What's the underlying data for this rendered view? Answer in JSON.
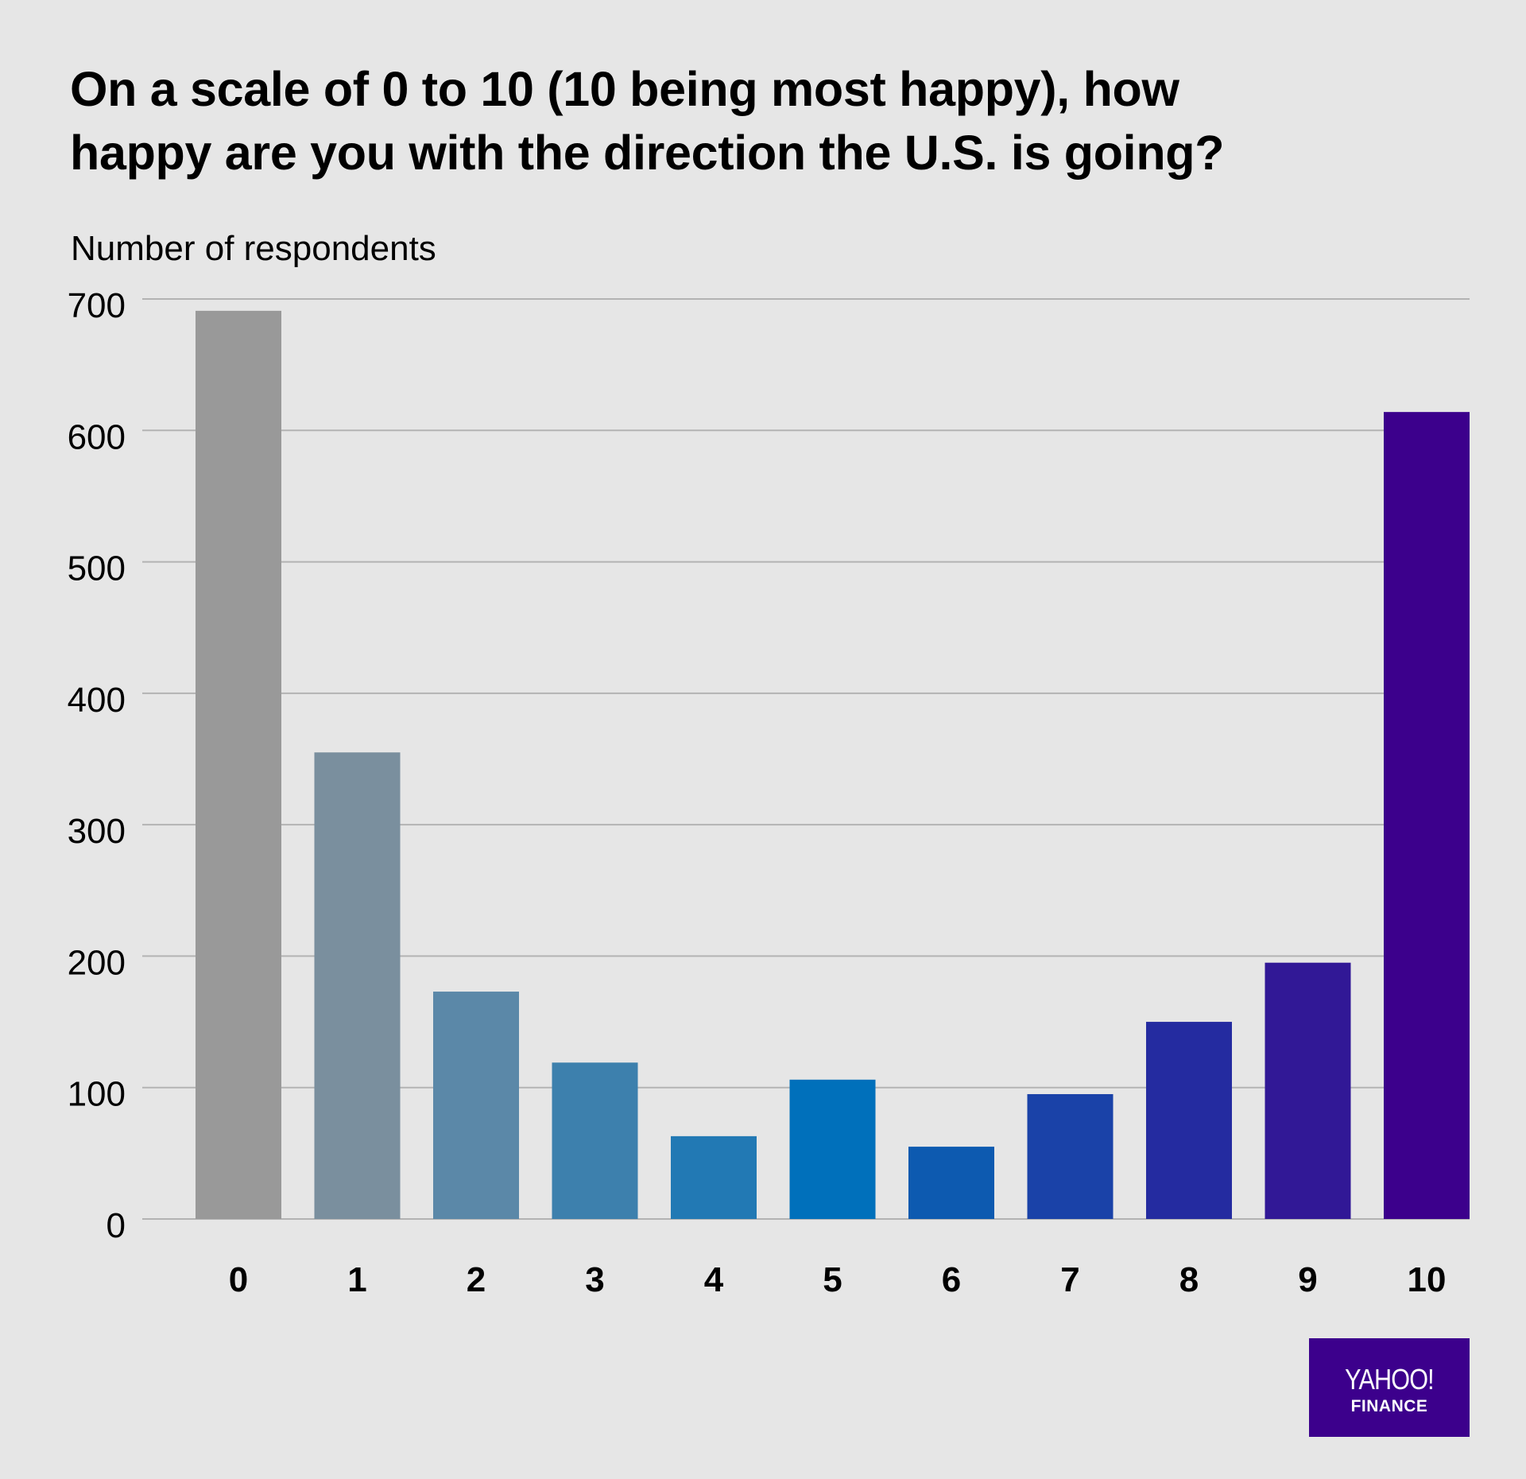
{
  "chart_data": {
    "type": "bar",
    "title": "On a scale of 0 to 10 (10 being most happy), how happy are you with the direction the U.S. is going?",
    "title_lines": [
      "On a scale of 0 to 10 (10 being most happy), how",
      "happy are you with the direction the U.S. is going?"
    ],
    "xlabel": "",
    "ylabel": "Number of respondents",
    "categories": [
      "0",
      "1",
      "2",
      "3",
      "4",
      "5",
      "6",
      "7",
      "8",
      "9",
      "10"
    ],
    "values": [
      691,
      355,
      173,
      119,
      63,
      106,
      55,
      95,
      150,
      195,
      614
    ],
    "colors": [
      "#999999",
      "#7a8f9e",
      "#5b88a8",
      "#3d80ad",
      "#2279b4",
      "#0070bb",
      "#0d5ab0",
      "#1a42a8",
      "#242ba0",
      "#311896",
      "#3c008c"
    ],
    "ylim": [
      0,
      700
    ],
    "yticks": [
      0,
      100,
      200,
      300,
      400,
      500,
      600,
      700
    ],
    "grid": true,
    "legend": "none",
    "background": "#e6e6e6",
    "grid_color": "#b3b3b3"
  },
  "branding": {
    "line1": "YAHOO!",
    "line2": "FINANCE",
    "color": "#3c008c"
  }
}
